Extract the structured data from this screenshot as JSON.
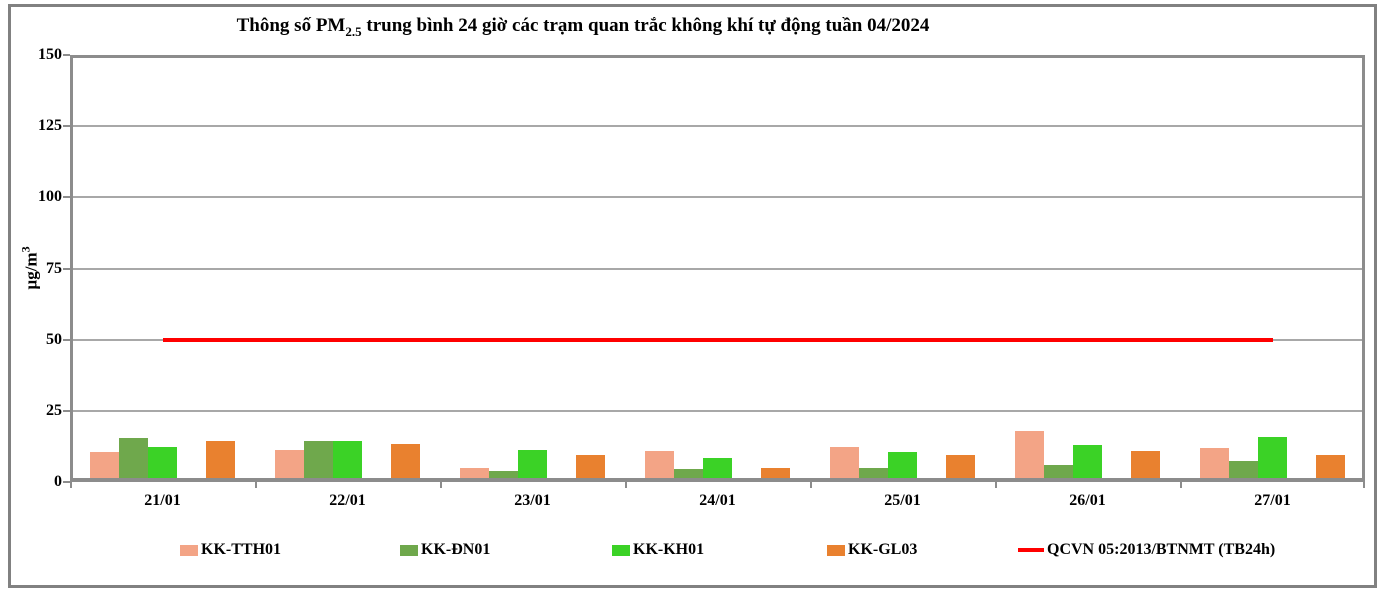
{
  "title": {
    "before": "Thông số PM",
    "sub": "2.5",
    "after": " trung bình 24 giờ các trạm quan trắc không khí tự động tuần 04/2024"
  },
  "y_axis": {
    "unit_base": "µg/m",
    "unit_sup": "3"
  },
  "chart_data": {
    "type": "bar",
    "title": "Thông số PM2.5 trung bình 24 giờ các trạm quan trắc không khí tự động tuần 04/2024",
    "ylabel": "µg/m3",
    "ylim": [
      0,
      150
    ],
    "yticks": [
      0,
      25,
      50,
      75,
      100,
      125,
      150
    ],
    "grid": true,
    "legend_position": "bottom",
    "categories": [
      "21/01",
      "22/01",
      "23/01",
      "24/01",
      "25/01",
      "26/01",
      "27/01"
    ],
    "series": [
      {
        "name": "KK-TTH01",
        "color": "#F3A486",
        "values": [
          9,
          10,
          3.5,
          9.5,
          11,
          16.5,
          10.5
        ]
      },
      {
        "name": "KK-ĐN01",
        "color": "#6FA84C",
        "values": [
          14,
          13,
          2.5,
          3,
          3.5,
          4.5,
          6
        ]
      },
      {
        "name": "KK-KH01",
        "color": "#3BD226",
        "values": [
          11,
          13,
          10,
          7,
          9,
          11.5,
          14.5
        ]
      },
      {
        "name": "KK-GL03",
        "color": "#E9812F",
        "values": [
          13,
          12,
          8,
          3.5,
          8,
          9.5,
          8
        ]
      }
    ],
    "threshold_line": {
      "name": "QCVN 05:2013/BTNMT (TB24h)",
      "color": "#FF0000",
      "value": 50
    }
  },
  "colors": {
    "grid": "#A8A8A8",
    "axis": "#8C8C8C",
    "frame": "#818181",
    "text": "#000000",
    "background": "#FFFFFF"
  }
}
